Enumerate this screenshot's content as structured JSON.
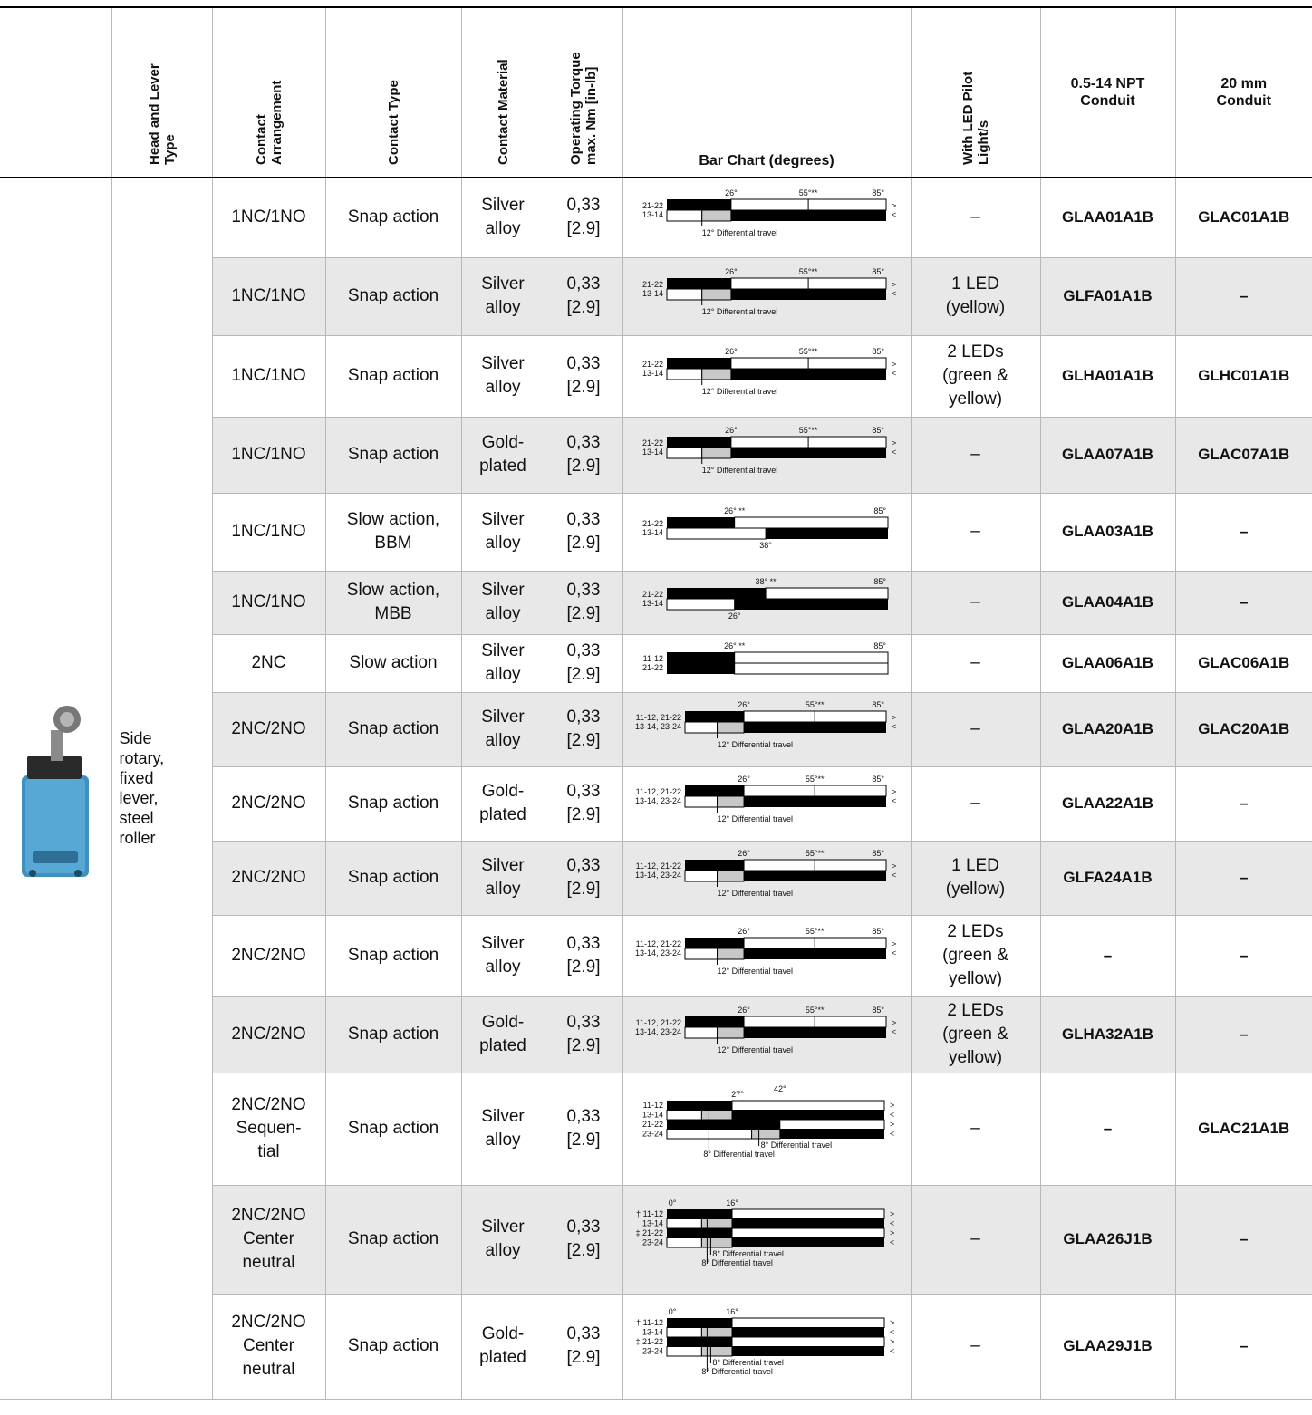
{
  "header": {
    "col_head_lever": "Head and Lever\nType",
    "col_contact_arrangement": "Contact\nArrangement",
    "col_contact_type": "Contact Type",
    "col_contact_material": "Contact Material",
    "col_torque": "Operating Torque\nmax. Nm [in-lb]",
    "col_bar_chart": "Bar Chart (degrees)",
    "col_led": "With LED Pilot\nLight/s",
    "col_npt": "0.5-14 NPT\nConduit",
    "col_20mm": "20 mm\nConduit"
  },
  "head_lever_type": "Side\nrotary,\nfixed\nlever,\nsteel\nroller",
  "product_image": "side-rotary-limit-switch",
  "rows": [
    {
      "arrangement": "1NC/1NO",
      "type": "Snap action",
      "material": "Silver\nalloy",
      "torque": "0,33\n[2.9]",
      "led": "–",
      "npt": "GLAA01A1B",
      "mm20": "GLAC01A1B",
      "chart": "snap1"
    },
    {
      "arrangement": "1NC/1NO",
      "type": "Snap action",
      "material": "Silver\nalloy",
      "torque": "0,33\n[2.9]",
      "led": "1 LED\n(yellow)",
      "npt": "GLFA01A1B",
      "mm20": "–",
      "chart": "snap1"
    },
    {
      "arrangement": "1NC/1NO",
      "type": "Snap action",
      "material": "Silver\nalloy",
      "torque": "0,33\n[2.9]",
      "led": "2 LEDs\n(green &\nyellow)",
      "npt": "GLHA01A1B",
      "mm20": "GLHC01A1B",
      "chart": "snap1"
    },
    {
      "arrangement": "1NC/1NO",
      "type": "Snap action",
      "material": "Gold-\nplated",
      "torque": "0,33\n[2.9]",
      "led": "–",
      "npt": "GLAA07A1B",
      "mm20": "GLAC07A1B",
      "chart": "snap1"
    },
    {
      "arrangement": "1NC/1NO",
      "type": "Slow action,\nBBM",
      "material": "Silver\nalloy",
      "torque": "0,33\n[2.9]",
      "led": "–",
      "npt": "GLAA03A1B",
      "mm20": "–",
      "chart": "bbm"
    },
    {
      "arrangement": "1NC/1NO",
      "type": "Slow action,\nMBB",
      "material": "Silver\nalloy",
      "torque": "0,33\n[2.9]",
      "led": "–",
      "npt": "GLAA04A1B",
      "mm20": "–",
      "chart": "mbb"
    },
    {
      "arrangement": "2NC",
      "type": "Slow action",
      "material": "Silver\nalloy",
      "torque": "0,33\n[2.9]",
      "led": "–",
      "npt": "GLAA06A1B",
      "mm20": "GLAC06A1B",
      "chart": "slow2nc"
    },
    {
      "arrangement": "2NC/2NO",
      "type": "Snap action",
      "material": "Silver\nalloy",
      "torque": "0,33\n[2.9]",
      "led": "–",
      "npt": "GLAA20A1B",
      "mm20": "GLAC20A1B",
      "chart": "snap2"
    },
    {
      "arrangement": "2NC/2NO",
      "type": "Snap action",
      "material": "Gold-\nplated",
      "torque": "0,33\n[2.9]",
      "led": "–",
      "npt": "GLAA22A1B",
      "mm20": "–",
      "chart": "snap2"
    },
    {
      "arrangement": "2NC/2NO",
      "type": "Snap action",
      "material": "Silver\nalloy",
      "torque": "0,33\n[2.9]",
      "led": "1 LED\n(yellow)",
      "npt": "GLFA24A1B",
      "mm20": "–",
      "chart": "snap2"
    },
    {
      "arrangement": "2NC/2NO",
      "type": "Snap action",
      "material": "Silver\nalloy",
      "torque": "0,33\n[2.9]",
      "led": "2 LEDs\n(green &\nyellow)",
      "npt": "–",
      "mm20": "–",
      "chart": "snap2"
    },
    {
      "arrangement": "2NC/2NO",
      "type": "Snap action",
      "material": "Gold-\nplated",
      "torque": "0,33\n[2.9]",
      "led": "2 LEDs\n(green &\nyellow)",
      "npt": "GLHA32A1B",
      "mm20": "–",
      "chart": "snap2"
    },
    {
      "arrangement": "2NC/2NO\nSequen-\ntial",
      "type": "Snap action",
      "material": "Silver\nalloy",
      "torque": "0,33\n[2.9]",
      "led": "–",
      "npt": "–",
      "mm20": "GLAC21A1B",
      "chart": "seq"
    },
    {
      "arrangement": "2NC/2NO\nCenter\nneutral",
      "type": "Snap action",
      "material": "Silver\nalloy",
      "torque": "0,33\n[2.9]",
      "led": "–",
      "npt": "GLAA26J1B",
      "mm20": "–",
      "chart": "center"
    },
    {
      "arrangement": "2NC/2NO\nCenter\nneutral",
      "type": "Snap action",
      "material": "Gold-\nplated",
      "torque": "0,33\n[2.9]",
      "led": "–",
      "npt": "GLAA29J1B",
      "mm20": "–",
      "chart": "center"
    }
  ],
  "charts": {
    "snap1": {
      "ticks": [
        "26°",
        "55°**",
        "85°"
      ],
      "labels": [
        "21-22",
        "13-14"
      ],
      "note": "12° Differential travel",
      "markers": [
        ">",
        "<"
      ]
    },
    "bbm": {
      "ticks": [
        "26° **",
        "85°"
      ],
      "labels": [
        "21-22",
        "13-14"
      ],
      "note": "38°"
    },
    "mbb": {
      "ticks": [
        "38° **",
        "85°"
      ],
      "labels": [
        "21-22",
        "13-14"
      ],
      "note": "26°"
    },
    "slow2nc": {
      "ticks": [
        "26° **",
        "85°"
      ],
      "labels": [
        "11-12",
        "21-22"
      ]
    },
    "snap2": {
      "ticks": [
        "26°",
        "55°**",
        "85°"
      ],
      "labels": [
        "11-12, 21-22",
        "13-14, 23-24"
      ],
      "note": "12° Differential travel",
      "markers": [
        ">",
        "<"
      ]
    },
    "seq": {
      "ticks": [
        "27°",
        "42°"
      ],
      "labels": [
        "11-12",
        "13-14",
        "21-22",
        "23-24"
      ],
      "notes": [
        "8° Differential travel",
        "8° Differential travel"
      ],
      "markers": [
        ">",
        "<",
        ">",
        "<"
      ]
    },
    "center": {
      "ticks": [
        "0°",
        "16°"
      ],
      "labels": [
        "† 11-12",
        "13-14",
        "‡ 21-22",
        "23-24"
      ],
      "notes": [
        "8° Differential travel",
        "8° Differential travel"
      ],
      "markers": [
        ">",
        "<",
        ">",
        "<"
      ]
    }
  }
}
